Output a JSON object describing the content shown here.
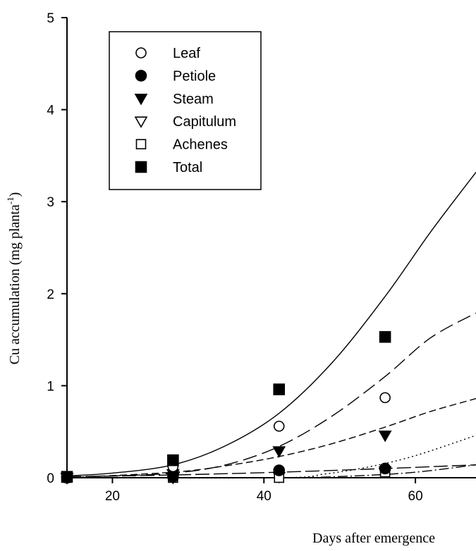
{
  "chart_data": {
    "type": "scatter",
    "title": "",
    "xlabel": "Days after emergence",
    "ylabel": "Cu accumulation (mg planta",
    "ylabel_superscript": "-1",
    "ylabel_suffix": ")",
    "xlim": [
      14,
      68
    ],
    "ylim": [
      0,
      5
    ],
    "xticks": [
      20,
      40,
      60
    ],
    "yticks": [
      0,
      1,
      2,
      3,
      4,
      5
    ],
    "legend_position": "top-left",
    "grid": false,
    "series": [
      {
        "name": "Leaf",
        "marker": "circle-open",
        "dash": "20 8",
        "points": [
          {
            "x": 14,
            "y": 0.01
          },
          {
            "x": 28,
            "y": 0.12
          },
          {
            "x": 42,
            "y": 0.56
          },
          {
            "x": 56,
            "y": 0.87
          }
        ],
        "curve": [
          {
            "x": 14,
            "y": 0.01
          },
          {
            "x": 20,
            "y": 0.02
          },
          {
            "x": 28,
            "y": 0.05
          },
          {
            "x": 35,
            "y": 0.14
          },
          {
            "x": 42,
            "y": 0.34
          },
          {
            "x": 49,
            "y": 0.67
          },
          {
            "x": 56,
            "y": 1.1
          },
          {
            "x": 62,
            "y": 1.52
          },
          {
            "x": 68,
            "y": 1.79
          }
        ]
      },
      {
        "name": "Petiole",
        "marker": "circle-filled",
        "dash": "20 6",
        "points": [
          {
            "x": 14,
            "y": 0.0
          },
          {
            "x": 28,
            "y": 0.01
          },
          {
            "x": 42,
            "y": 0.08
          },
          {
            "x": 56,
            "y": 0.1
          }
        ],
        "curve": [
          {
            "x": 14,
            "y": 0.01
          },
          {
            "x": 28,
            "y": 0.03
          },
          {
            "x": 42,
            "y": 0.06
          },
          {
            "x": 56,
            "y": 0.1
          },
          {
            "x": 68,
            "y": 0.14
          }
        ]
      },
      {
        "name": "Steam",
        "marker": "triangle-down-filled",
        "dash": "10 5",
        "points": [
          {
            "x": 14,
            "y": 0.0
          },
          {
            "x": 28,
            "y": 0.04
          },
          {
            "x": 42,
            "y": 0.29
          },
          {
            "x": 56,
            "y": 0.46
          }
        ],
        "curve": [
          {
            "x": 14,
            "y": 0.0
          },
          {
            "x": 28,
            "y": 0.06
          },
          {
            "x": 35,
            "y": 0.13
          },
          {
            "x": 42,
            "y": 0.23
          },
          {
            "x": 49,
            "y": 0.37
          },
          {
            "x": 56,
            "y": 0.55
          },
          {
            "x": 62,
            "y": 0.72
          },
          {
            "x": 68,
            "y": 0.86
          }
        ]
      },
      {
        "name": "Capitulum",
        "marker": "triangle-down-open",
        "dash": "14 4 2 4",
        "points": [
          {
            "x": 14,
            "y": 0.0
          },
          {
            "x": 28,
            "y": 0.0
          },
          {
            "x": 42,
            "y": 0.01
          },
          {
            "x": 56,
            "y": 0.07
          }
        ],
        "curve": [
          {
            "x": 14,
            "y": 0.0
          },
          {
            "x": 42,
            "y": 0.0
          },
          {
            "x": 52,
            "y": 0.02
          },
          {
            "x": 60,
            "y": 0.06
          },
          {
            "x": 68,
            "y": 0.14
          }
        ]
      },
      {
        "name": "Achenes",
        "marker": "square-open",
        "dash": "2 4",
        "points": [
          {
            "x": 14,
            "y": 0.0
          },
          {
            "x": 28,
            "y": 0.0
          },
          {
            "x": 42,
            "y": 0.0
          },
          {
            "x": 56,
            "y": 0.06
          }
        ],
        "curve": [
          {
            "x": 14,
            "y": 0.0
          },
          {
            "x": 42,
            "y": 0.0
          },
          {
            "x": 48,
            "y": 0.04
          },
          {
            "x": 54,
            "y": 0.12
          },
          {
            "x": 60,
            "y": 0.24
          },
          {
            "x": 68,
            "y": 0.46
          }
        ]
      },
      {
        "name": "Total",
        "marker": "square-filled",
        "dash": "",
        "points": [
          {
            "x": 14,
            "y": 0.01
          },
          {
            "x": 28,
            "y": 0.19
          },
          {
            "x": 42,
            "y": 0.96
          },
          {
            "x": 56,
            "y": 1.53
          }
        ],
        "curve": [
          {
            "x": 14,
            "y": 0.02
          },
          {
            "x": 20,
            "y": 0.05
          },
          {
            "x": 28,
            "y": 0.14
          },
          {
            "x": 35,
            "y": 0.35
          },
          {
            "x": 42,
            "y": 0.7
          },
          {
            "x": 49,
            "y": 1.25
          },
          {
            "x": 56,
            "y": 1.97
          },
          {
            "x": 62,
            "y": 2.67
          },
          {
            "x": 68,
            "y": 3.32
          }
        ]
      }
    ]
  }
}
